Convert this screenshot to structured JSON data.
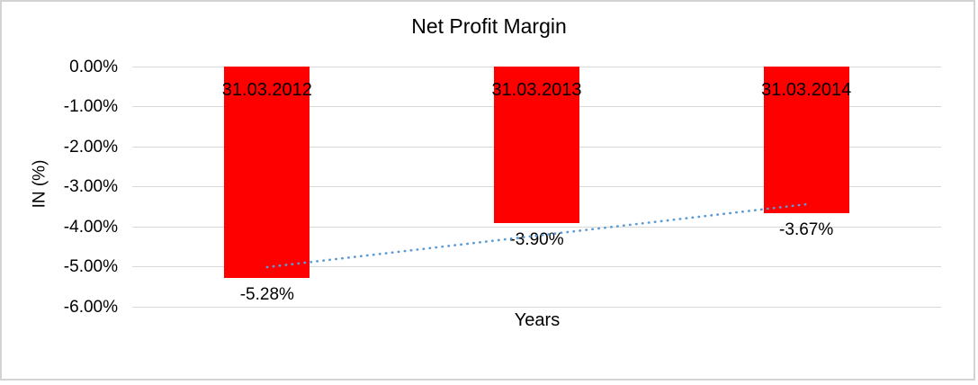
{
  "chart_data": {
    "type": "bar",
    "title": "Net Profit Margin",
    "xlabel": "Years",
    "ylabel": "IN (%)",
    "categories": [
      "31.03.2012",
      "31.03.2013",
      "31.03.2014"
    ],
    "values": [
      -5.28,
      -3.9,
      -3.67
    ],
    "value_labels": [
      "-5.28%",
      "-3.90%",
      "-3.67%"
    ],
    "yticks": [
      {
        "label": "0.00%",
        "value": 0
      },
      {
        "label": "-1.00%",
        "value": -1
      },
      {
        "label": "-2.00%",
        "value": -2
      },
      {
        "label": "-3.00%",
        "value": -3
      },
      {
        "label": "-4.00%",
        "value": -4
      },
      {
        "label": "-5.00%",
        "value": -5
      },
      {
        "label": "-6.00%",
        "value": -6
      }
    ],
    "ylim": [
      -6,
      0
    ],
    "grid": true,
    "legend_position": "none",
    "bar_color": "#ff0000",
    "gridline_color": "#d9d9d9",
    "label_color": "#000000",
    "frame_color": "#d3d3d3",
    "trendline": {
      "type": "linear",
      "style": "dotted",
      "color": "#5b9bd5",
      "start_value": -5.01,
      "end_value": -3.44
    }
  }
}
